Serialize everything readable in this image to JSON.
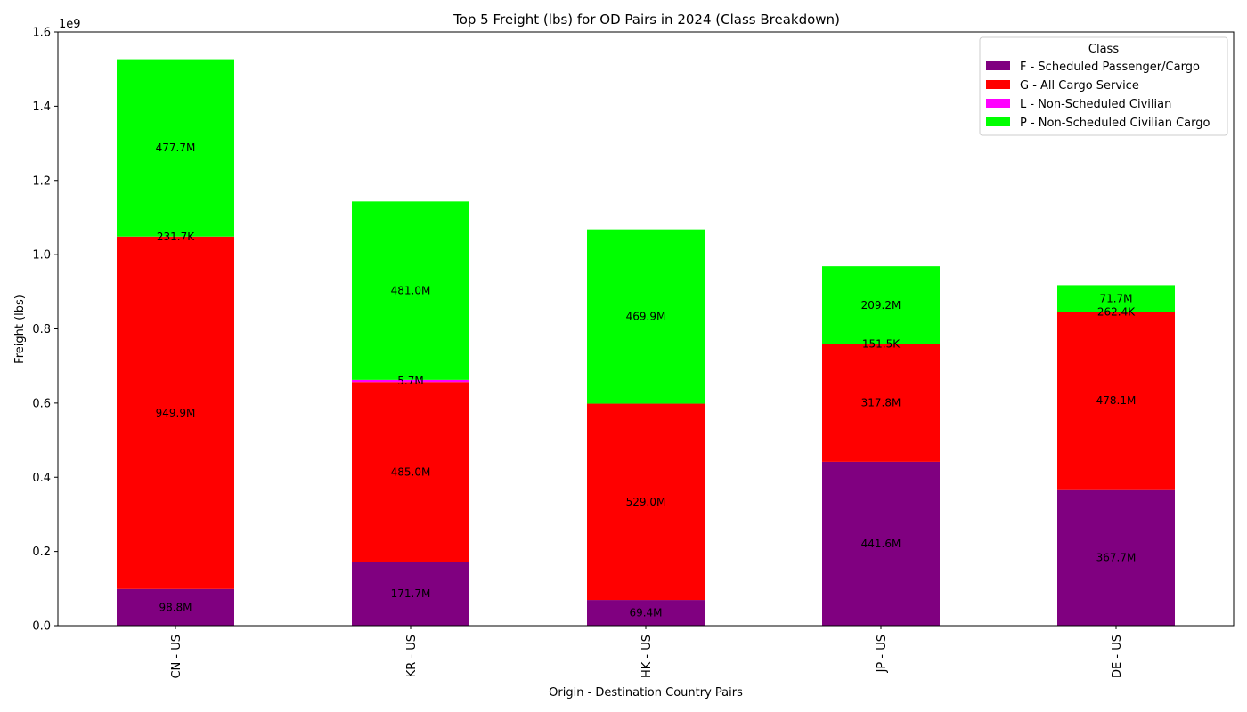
{
  "chart_data": {
    "type": "bar",
    "stacked": true,
    "title": "Top 5 Freight (lbs) for OD Pairs in 2024 (Class Breakdown)",
    "xlabel": "Origin - Destination Country Pairs",
    "ylabel": "Freight (lbs)",
    "y_multiplier_label": "1e9",
    "ylim": [
      0,
      1.6
    ],
    "yticks": [
      "0.0",
      "0.2",
      "0.4",
      "0.6",
      "0.8",
      "1.0",
      "1.2",
      "1.4",
      "1.6"
    ],
    "categories": [
      "CN - US",
      "KR - US",
      "HK - US",
      "JP - US",
      "DE - US"
    ],
    "legend": {
      "title": "Class",
      "position": "top-right"
    },
    "series": [
      {
        "name": "F - Scheduled Passenger/Cargo",
        "color": "#800080",
        "values": [
          0.0988,
          0.1717,
          0.0694,
          0.4416,
          0.3677
        ],
        "labels": [
          "98.8M",
          "171.7M",
          "69.4M",
          "441.6M",
          "367.7M"
        ]
      },
      {
        "name": "G - All Cargo Service",
        "color": "#ff0000",
        "values": [
          0.9499,
          0.485,
          0.529,
          0.3178,
          0.4781
        ],
        "labels": [
          "949.9M",
          "485.0M",
          "529.0M",
          "317.8M",
          "478.1M"
        ]
      },
      {
        "name": "L - Non-Scheduled Civilian",
        "color": "#ff00ff",
        "values": [
          0.0002317,
          0.0057,
          0.0,
          0.0001515,
          0.0002624
        ],
        "labels": [
          "231.7K",
          "5.7M",
          "",
          "151.5K",
          "262.4K"
        ]
      },
      {
        "name": "P - Non-Scheduled Civilian Cargo",
        "color": "#00ff00",
        "values": [
          0.4777,
          0.481,
          0.4699,
          0.2092,
          0.0717
        ],
        "labels": [
          "477.7M",
          "481.0M",
          "469.9M",
          "209.2M",
          "71.7M"
        ]
      }
    ]
  }
}
